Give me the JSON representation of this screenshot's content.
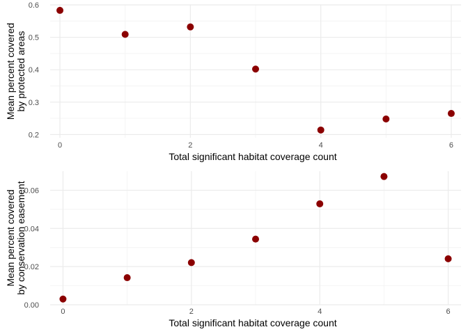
{
  "colors": {
    "point": "#8b0000",
    "grid_major": "#ebebeb",
    "grid_minor": "#f4f4f4",
    "background": "#ffffff"
  },
  "chart_data": [
    {
      "type": "scatter",
      "title": "",
      "xlabel": "Total significant habitat coverage count",
      "ylabel_lines": [
        "Mean percent covered",
        "by protected areas"
      ],
      "x": [
        0,
        1,
        2,
        3,
        4,
        5,
        6
      ],
      "y": [
        0.583,
        0.509,
        0.532,
        0.402,
        0.214,
        0.248,
        0.265
      ],
      "xlim": [
        -0.15,
        6.15
      ],
      "ylim": [
        0.19,
        0.6
      ],
      "xticks": [
        0,
        2,
        4,
        6
      ],
      "xtick_labels": [
        "0",
        "2",
        "4",
        "6"
      ],
      "yticks": [
        0.2,
        0.3,
        0.4,
        0.5,
        0.6
      ],
      "ytick_labels": [
        "0.2",
        "0.3",
        "0.4",
        "0.5",
        "0.6"
      ],
      "grid": true
    },
    {
      "type": "scatter",
      "title": "",
      "xlabel": "Total significant habitat coverage count",
      "ylabel_lines": [
        "Mean percent covered",
        "by conservation easement"
      ],
      "x": [
        0,
        1,
        2,
        3,
        4,
        5,
        6
      ],
      "y": [
        0.003,
        0.0142,
        0.0221,
        0.0344,
        0.0529,
        0.0672,
        0.0241
      ],
      "xlim": [
        -0.2,
        6.2
      ],
      "ylim": [
        0.0,
        0.07
      ],
      "xticks": [
        0,
        2,
        4,
        6
      ],
      "xtick_labels": [
        "0",
        "2",
        "4",
        "6"
      ],
      "yticks": [
        0.0,
        0.02,
        0.04,
        0.06
      ],
      "ytick_labels": [
        "0.00",
        "0.02",
        "0.04",
        "0.06"
      ],
      "grid": true
    }
  ]
}
